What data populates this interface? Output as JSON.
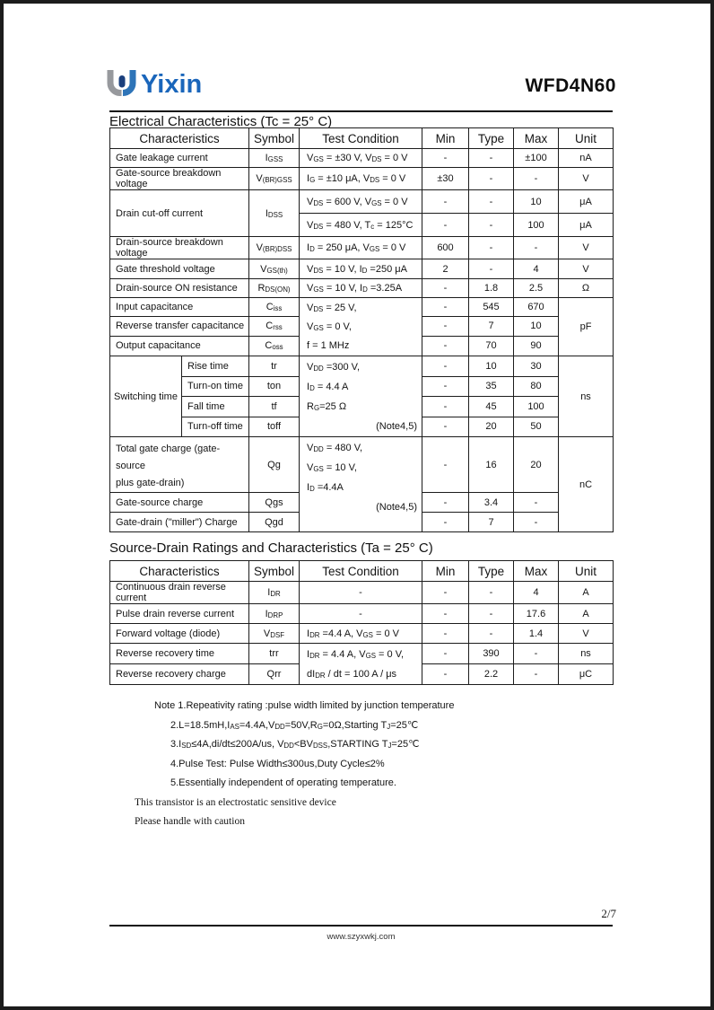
{
  "brand": {
    "logo_text": "Yixin",
    "part_number": "WFD4N60",
    "logo_blue": "#1a66bb",
    "logo_gray": "#97999d",
    "logo_navy": "#1a3f7d"
  },
  "t1": {
    "title": "Electrical Characteristics (Tc = 25° C)",
    "cols": [
      "Characteristics",
      "Symbol",
      "Test Condition",
      "Min",
      "Type",
      "Max",
      "Unit"
    ],
    "rows": [
      {
        "name": "Gate leakage current",
        "sym": "I~GSS~",
        "tc": "V~GS~ =  ±30 V, V~DS~ = 0 V",
        "min": "-",
        "typ": "-",
        "max": "±100",
        "unit": "nA"
      },
      {
        "name": "Gate-source breakdown voltage",
        "sym": "V~(BR)GSS~",
        "tc": "I~G~ =  ±10 μA, V~DS~ = 0 V",
        "min": "±30",
        "typ": "-",
        "max": "-",
        "unit": "V"
      },
      {
        "name": "Drain cut-off current",
        "sym": "I~DSS~",
        "tc": "V~DS~ = 600 V, V~GS~ = 0 V",
        "min": "-",
        "typ": "-",
        "max": "10",
        "unit": "μA"
      },
      {
        "tc": "V~DS~ = 480 V, T~c~ = 125°C",
        "min": "-",
        "typ": "-",
        "max": "100",
        "unit": "μA"
      },
      {
        "name": "Drain-source breakdown voltage",
        "sym": "V~(BR)DSS~",
        "tc": "I~D~ = 250 μA, V~GS~ = 0 V",
        "min": "600",
        "typ": "-",
        "max": "-",
        "unit": "V"
      },
      {
        "name": "Gate threshold voltage",
        "sym": "V~GS(th)~",
        "tc": "V~DS~ = 10 V, I~D~ =250 μA",
        "min": "2",
        "typ": "-",
        "max": "4",
        "unit": "V"
      },
      {
        "name": "Drain-source ON resistance",
        "sym": "R~DS(ON)~",
        "tc": "V~GS~ = 10 V, I~D~ =3.25A",
        "min": "-",
        "typ": "1.8",
        "max": "2.5",
        "unit": "Ω"
      },
      {
        "name": "Input capacitance",
        "sym": "C~iss~",
        "tc1": "V~DS~ = 25 V,",
        "tc2": "V~GS~ = 0 V,",
        "tc3": "f = 1 MHz",
        "min": "-",
        "typ": "545",
        "max": "670",
        "unit": "pF"
      },
      {
        "name": "Reverse transfer capacitance",
        "sym": "C~rss~",
        "min": "-",
        "typ": "7",
        "max": "10"
      },
      {
        "name": "Output capacitance",
        "sym": "C~oss~",
        "min": "-",
        "typ": "70",
        "max": "90"
      },
      {
        "group": "Switching time",
        "name": "Rise time",
        "sym": "tr",
        "tc1": "V~DD~ =300 V,",
        "tc2": "I~D~ = 4.4 A",
        "tc3": "R~G~=25 Ω",
        "tc4": "(Note4,5)",
        "min": "-",
        "typ": "10",
        "max": "30",
        "unit": "ns"
      },
      {
        "name": "Turn-on time",
        "sym": "ton",
        "min": "-",
        "typ": "35",
        "max": "80"
      },
      {
        "name": "Fall time",
        "sym": "tf",
        "min": "-",
        "typ": "45",
        "max": "100"
      },
      {
        "name": "Turn-off time",
        "sym": "toff",
        "min": "-",
        "typ": "20",
        "max": "50"
      },
      {
        "name1": "Total gate charge (gate-source",
        "name2": "plus gate-drain)",
        "sym": "Qg",
        "tc1": "V~DD~ = 480 V,",
        "tc2": "V~GS~ = 10 V,",
        "tc3": "I~D~ =4.4A",
        "tc4": "(Note4,5)",
        "min": "-",
        "typ": "16",
        "max": "20",
        "unit": "nC"
      },
      {
        "name": "Gate-source charge",
        "sym": "Qgs",
        "min": "-",
        "typ": "3.4",
        "max": "-"
      },
      {
        "name": "Gate-drain (\"miller\") Charge",
        "sym": "Qgd",
        "min": "-",
        "typ": "7",
        "max": "-"
      }
    ]
  },
  "t2": {
    "title": "Source-Drain Ratings and Characteristics (Ta = 25° C)",
    "cols": [
      "Characteristics",
      "Symbol",
      "Test Condition",
      "Min",
      "Type",
      "Max",
      "Unit"
    ],
    "rows": [
      {
        "name": "Continuous drain reverse current",
        "sym": "I~DR~",
        "tc": "-",
        "min": "-",
        "typ": "-",
        "max": "4",
        "unit": "A"
      },
      {
        "name": "Pulse drain reverse current",
        "sym": "I~DRP~",
        "tc": "-",
        "min": "-",
        "typ": "-",
        "max": "17.6",
        "unit": "A"
      },
      {
        "name": "Forward voltage (diode)",
        "sym": "V~DSF~",
        "tc": "I~DR~ =4.4 A, V~GS~ = 0 V",
        "min": "-",
        "typ": "-",
        "max": "1.4",
        "unit": "V"
      },
      {
        "name": "Reverse recovery time",
        "sym": "trr",
        "tc1": "I~DR~ = 4.4 A, V~GS~ = 0 V,",
        "tc2": "dI~DR~ / dt = 100 A / μs",
        "min": "-",
        "typ": "390",
        "max": "-",
        "unit": "ns"
      },
      {
        "name": "Reverse recovery charge",
        "sym": "Qrr",
        "min": "-",
        "typ": "2.2",
        "max": "-",
        "unit": "μC"
      }
    ]
  },
  "notes": {
    "line1": "Note 1.Repeativity rating :pulse width limited by junction temperature",
    "line2": "2.L=18.5mH,I~AS~=4.4A,V~DD~=50V,R~G~=0Ω,Starting T~J~=25℃",
    "line3": "3.I~SD~≤4A,di/dt≤200A/us, V~DD~<BV~DSS~,STARTING T~J~=25℃",
    "line4": "4.Pulse Test: Pulse Width≤300us,Duty Cycle≤2%",
    "line5": "5.Essentially independent of operating temperature.",
    "esd1": "This transistor is an electrostatic sensitive device",
    "esd2": "Please handle with caution"
  },
  "footer": {
    "page_number": "2/7",
    "website": "www.szyxwkj.com"
  }
}
